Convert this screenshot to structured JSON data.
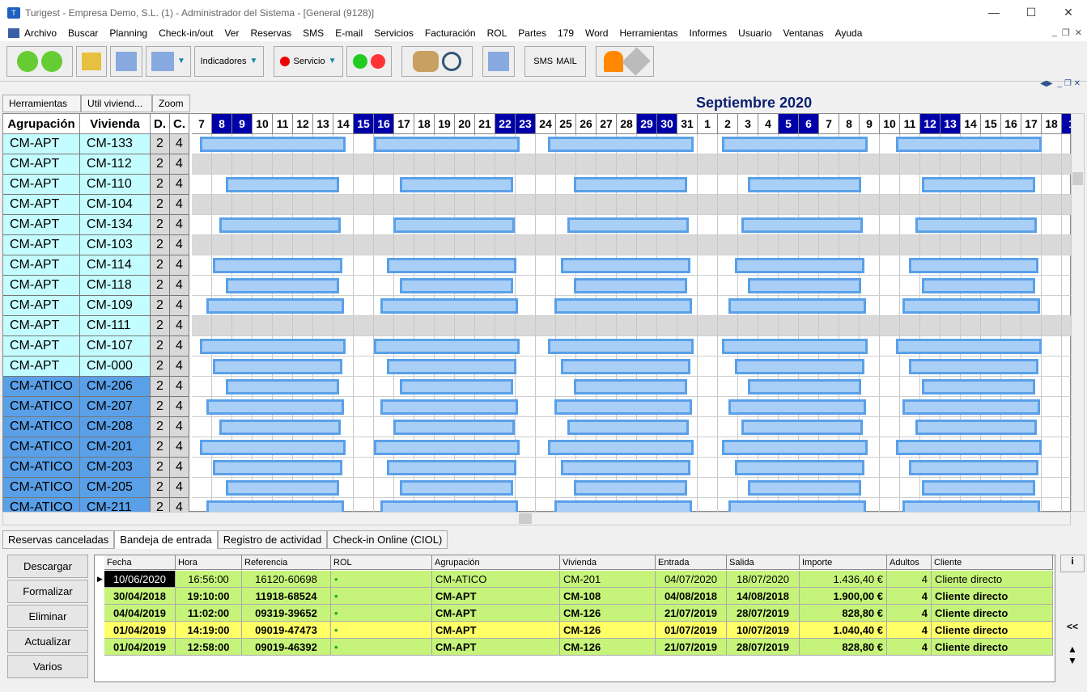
{
  "window": {
    "title": "Turigest - Empresa Demo, S.L. (1) - Administrador del Sistema - [General (9128)]"
  },
  "menu": [
    "Archivo",
    "Buscar",
    "Planning",
    "Check-in/out",
    "Ver",
    "Reservas",
    "SMS",
    "E-mail",
    "Servicios",
    "Facturación",
    "ROL",
    "Partes",
    "179",
    "Word",
    "Herramientas",
    "Informes",
    "Usuario",
    "Ventanas",
    "Ayuda"
  ],
  "toolbar": {
    "indicadores": "Indicadores",
    "servicio": "Servicio",
    "sms": "SMS",
    "mail": "MAIL"
  },
  "toptabs": [
    "Herramientas",
    "Util viviend...",
    "Zoom"
  ],
  "month": "Septiembre 2020",
  "columns": {
    "agrupacion": "Agrupación",
    "vivienda": "Vivienda",
    "d": "D.",
    "c": "C."
  },
  "days": [
    "7",
    "8",
    "9",
    "10",
    "11",
    "12",
    "13",
    "14",
    "15",
    "16",
    "17",
    "18",
    "19",
    "20",
    "21",
    "22",
    "23",
    "24",
    "25",
    "26",
    "27",
    "28",
    "29",
    "30",
    "31",
    "1",
    "2",
    "3",
    "4",
    "5",
    "6",
    "7",
    "8",
    "9",
    "10",
    "11",
    "12",
    "13",
    "14",
    "15",
    "16",
    "17",
    "18",
    "1"
  ],
  "weekend_days": [
    1,
    2,
    8,
    9,
    15,
    16,
    22,
    23,
    29,
    30,
    36,
    37,
    43
  ],
  "rows": [
    {
      "agr": "CM-APT",
      "viv": "CM-133",
      "d": "2",
      "c": "4"
    },
    {
      "agr": "CM-APT",
      "viv": "CM-112",
      "d": "2",
      "c": "4"
    },
    {
      "agr": "CM-APT",
      "viv": "CM-110",
      "d": "2",
      "c": "4"
    },
    {
      "agr": "CM-APT",
      "viv": "CM-104",
      "d": "2",
      "c": "4"
    },
    {
      "agr": "CM-APT",
      "viv": "CM-134",
      "d": "2",
      "c": "4"
    },
    {
      "agr": "CM-APT",
      "viv": "CM-103",
      "d": "2",
      "c": "4"
    },
    {
      "agr": "CM-APT",
      "viv": "CM-114",
      "d": "2",
      "c": "4"
    },
    {
      "agr": "CM-APT",
      "viv": "CM-118",
      "d": "2",
      "c": "4"
    },
    {
      "agr": "CM-APT",
      "viv": "CM-109",
      "d": "2",
      "c": "4"
    },
    {
      "agr": "CM-APT",
      "viv": "CM-111",
      "d": "2",
      "c": "4"
    },
    {
      "agr": "CM-APT",
      "viv": "CM-107",
      "d": "2",
      "c": "4"
    },
    {
      "agr": "CM-APT",
      "viv": "CM-000",
      "d": "2",
      "c": "4"
    },
    {
      "agr": "CM-ATICO",
      "viv": "CM-206",
      "d": "2",
      "c": "4"
    },
    {
      "agr": "CM-ATICO",
      "viv": "CM-207",
      "d": "2",
      "c": "4"
    },
    {
      "agr": "CM-ATICO",
      "viv": "CM-208",
      "d": "2",
      "c": "4"
    },
    {
      "agr": "CM-ATICO",
      "viv": "CM-201",
      "d": "2",
      "c": "4"
    },
    {
      "agr": "CM-ATICO",
      "viv": "CM-203",
      "d": "2",
      "c": "4"
    },
    {
      "agr": "CM-ATICO",
      "viv": "CM-205",
      "d": "2",
      "c": "4"
    },
    {
      "agr": "CM-ATICO",
      "viv": "CM-211",
      "d": "2",
      "c": "4"
    }
  ],
  "bottomtabs": [
    "Reservas canceladas",
    "Bandeja de entrada",
    "Registro de actividad",
    "Check-in Online (CIOL)"
  ],
  "sidebuttons": [
    "Descargar",
    "Formalizar",
    "Eliminar",
    "Actualizar",
    "Varios"
  ],
  "inbox": {
    "headers": [
      "Fecha",
      "Hora",
      "Referencia",
      "ROL",
      "Agrupación",
      "Vivienda",
      "Entrada",
      "Salida",
      "Importe",
      "Adultos",
      "Cliente"
    ],
    "rows": [
      {
        "fecha": "10/06/2020",
        "hora": "16:56:00",
        "ref": "16120-60698",
        "agr": "CM-ATICO",
        "viv": "CM-201",
        "ent": "04/07/2020",
        "sal": "18/07/2020",
        "imp": "1.436,40 €",
        "adu": "4",
        "cli": "Cliente directo",
        "color": "#c6f47a"
      },
      {
        "fecha": "30/04/2018",
        "hora": "19:10:00",
        "ref": "11918-68524",
        "agr": "CM-APT",
        "viv": "CM-108",
        "ent": "04/08/2018",
        "sal": "14/08/2018",
        "imp": "1.900,00 €",
        "adu": "4",
        "cli": "Cliente directo",
        "color": "#c6f47a"
      },
      {
        "fecha": "04/04/2019",
        "hora": "11:02:00",
        "ref": "09319-39652",
        "agr": "CM-APT",
        "viv": "CM-126",
        "ent": "21/07/2019",
        "sal": "28/07/2019",
        "imp": "828,80 €",
        "adu": "4",
        "cli": "Cliente directo",
        "color": "#c6f47a"
      },
      {
        "fecha": "01/04/2019",
        "hora": "14:19:00",
        "ref": "09019-47473",
        "agr": "CM-APT",
        "viv": "CM-126",
        "ent": "01/07/2019",
        "sal": "10/07/2019",
        "imp": "1.040,40 €",
        "adu": "4",
        "cli": "Cliente directo",
        "color": "#ffff66"
      },
      {
        "fecha": "01/04/2019",
        "hora": "12:58:00",
        "ref": "09019-46392",
        "agr": "CM-APT",
        "viv": "CM-126",
        "ent": "21/07/2019",
        "sal": "28/07/2019",
        "imp": "828,80 €",
        "adu": "4",
        "cli": "Cliente directo",
        "color": "#c6f47a"
      }
    ]
  },
  "rightpanel": {
    "info": "i",
    "collapse": "<<"
  },
  "colors": {
    "weekend": "#0000a8",
    "apt": "#c4fdff",
    "atico": "#5aa0e8",
    "booking": "#a9cff6"
  }
}
